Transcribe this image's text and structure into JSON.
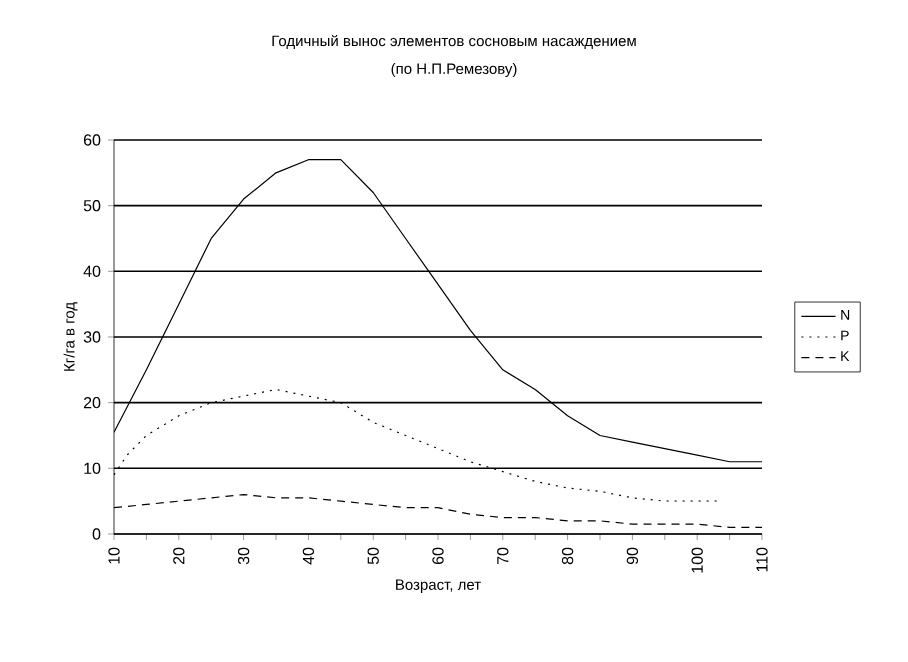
{
  "chart_data": {
    "type": "line",
    "title": "Годичный вынос элементов сосновым насаждением",
    "subtitle": "(по Н.П.Ремезову)",
    "xlabel": "Возраст, лет",
    "ylabel": "Кг/га в год",
    "xlim": [
      10,
      110
    ],
    "ylim": [
      0,
      60
    ],
    "xticks": [
      10,
      {
        "value": 15,
        "label": null
      },
      20,
      {
        "value": 25,
        "label": null
      },
      30,
      {
        "value": 35,
        "label": null
      },
      40,
      {
        "value": 45,
        "label": null
      },
      50,
      {
        "value": 55,
        "label": null
      },
      60,
      {
        "value": 65,
        "label": null
      },
      70,
      {
        "value": 75,
        "label": null
      },
      80,
      {
        "value": 85,
        "label": null
      },
      90,
      {
        "value": 95,
        "label": null
      },
      100,
      {
        "value": 105,
        "label": null
      },
      110
    ],
    "yticks": [
      0,
      10,
      20,
      30,
      40,
      50,
      60
    ],
    "grid": "y",
    "legend": "right",
    "series": [
      {
        "name": "N",
        "color": "#000000",
        "line_style": "solid",
        "x": [
          10,
          15,
          20,
          25,
          30,
          35,
          40,
          45,
          50,
          55,
          60,
          65,
          70,
          75,
          80,
          85,
          90,
          95,
          100,
          105,
          110
        ],
        "values": [
          15.5,
          25,
          35,
          45,
          51,
          55,
          57,
          57,
          52,
          45,
          38,
          31,
          25,
          22,
          18,
          15,
          14,
          13,
          12,
          11,
          11
        ]
      },
      {
        "name": "P",
        "color": "#000000",
        "line_style": "dotted",
        "x": [
          10,
          12,
          15,
          20,
          25,
          30,
          35,
          40,
          45,
          50,
          55,
          60,
          65,
          70,
          75,
          80,
          85,
          90,
          95,
          100,
          103
        ],
        "values": [
          9,
          12,
          15,
          18,
          20,
          21,
          22,
          21,
          20,
          17,
          15,
          13,
          11,
          9.5,
          8,
          7,
          6.5,
          5.5,
          5,
          5,
          5
        ]
      },
      {
        "name": "K",
        "color": "#000000",
        "line_style": "dashed",
        "x": [
          10,
          15,
          20,
          25,
          30,
          35,
          40,
          45,
          50,
          55,
          60,
          65,
          70,
          75,
          80,
          85,
          90,
          95,
          100,
          105,
          110
        ],
        "values": [
          4,
          4.5,
          5,
          5.5,
          6,
          5.5,
          5.5,
          5,
          4.5,
          4,
          4,
          3,
          2.5,
          2.5,
          2,
          2,
          1.5,
          1.5,
          1.5,
          1,
          1
        ]
      }
    ]
  }
}
